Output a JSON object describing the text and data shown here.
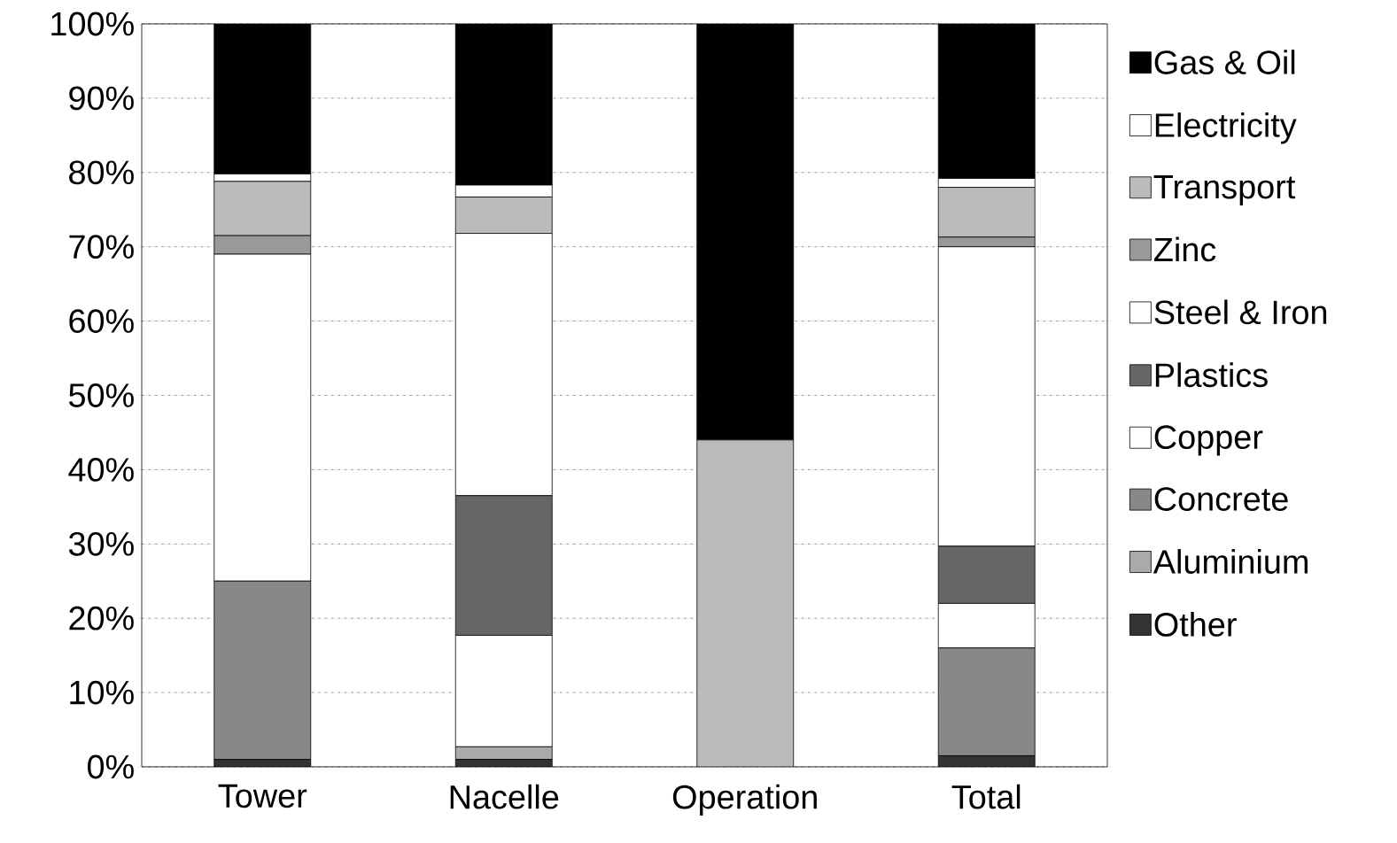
{
  "chart_data": {
    "type": "bar",
    "stacked": true,
    "categories": [
      "Tower",
      "Nacelle",
      "Operation",
      "Total"
    ],
    "series": [
      {
        "name": "Other",
        "color": "#333333",
        "values": [
          1,
          1,
          0,
          1.5
        ]
      },
      {
        "name": "Aluminium",
        "color": "#aaaaaa",
        "values": [
          0,
          1.7,
          0,
          0
        ]
      },
      {
        "name": "Concrete",
        "color": "#888888",
        "values": [
          24,
          0,
          0,
          14.5
        ]
      },
      {
        "name": "Copper",
        "color": "#ffffff",
        "values": [
          0,
          15,
          0,
          6
        ]
      },
      {
        "name": "Plastics",
        "color": "#666666",
        "values": [
          0,
          18.8,
          0,
          7.7
        ]
      },
      {
        "name": "Steel & Iron",
        "color": "#ffffff",
        "values": [
          44,
          35.3,
          0,
          40.3
        ]
      },
      {
        "name": "Zinc",
        "color": "#999999",
        "values": [
          2.5,
          0,
          0,
          1.3
        ]
      },
      {
        "name": "Transport",
        "color": "#bbbbbb",
        "values": [
          7.3,
          4.9,
          44,
          6.7
        ]
      },
      {
        "name": "Electricity",
        "color": "#ffffff",
        "values": [
          1,
          1.6,
          0,
          1.2
        ]
      },
      {
        "name": "Gas & Oil",
        "color": "#000000",
        "values": [
          20.2,
          21.7,
          56,
          20.8
        ]
      }
    ],
    "ylim": [
      0,
      100
    ],
    "yticks": [
      {
        "value": 0,
        "label": "0%"
      },
      {
        "value": 10,
        "label": "10%"
      },
      {
        "value": 20,
        "label": "20%"
      },
      {
        "value": 30,
        "label": "30%"
      },
      {
        "value": 40,
        "label": "40%"
      },
      {
        "value": 50,
        "label": "50%"
      },
      {
        "value": 60,
        "label": "60%"
      },
      {
        "value": 70,
        "label": "70%"
      },
      {
        "value": 80,
        "label": "80%"
      },
      {
        "value": 90,
        "label": "90%"
      },
      {
        "value": 100,
        "label": "100%"
      }
    ],
    "grid": "y",
    "legend": "right"
  }
}
